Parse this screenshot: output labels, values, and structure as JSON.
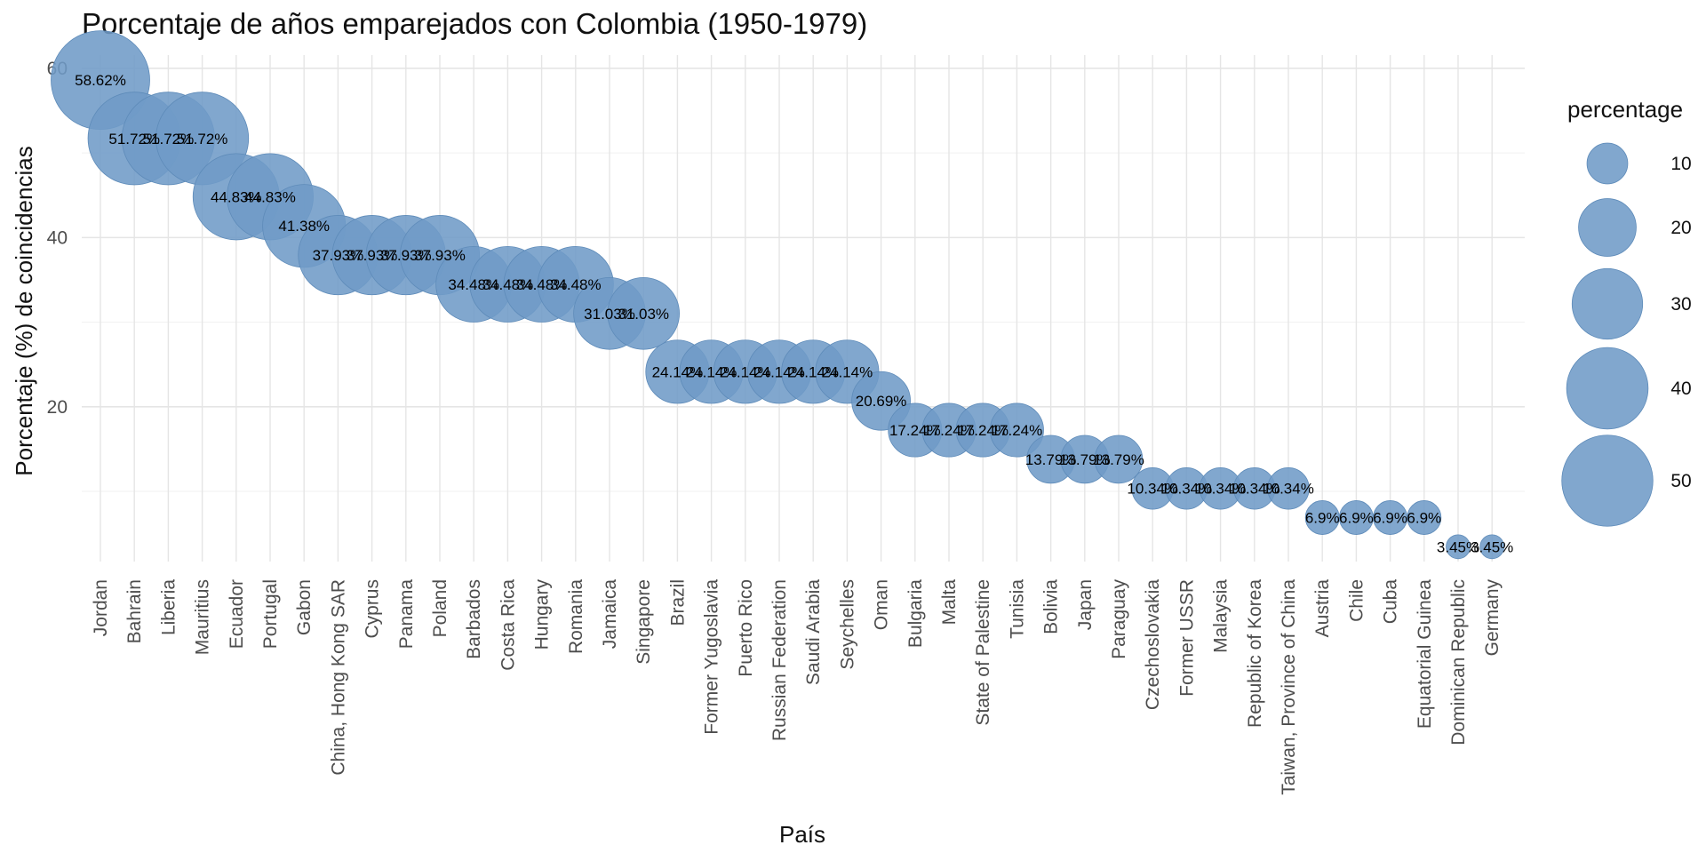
{
  "chart_data": {
    "type": "scatter",
    "title": "Porcentaje de años emparejados con Colombia (1950-1979)",
    "xlabel": "País",
    "ylabel": "Porcentaje (%) de coincidencias",
    "ylim": [
      1.7,
      60.3
    ],
    "yticks": [
      20,
      40,
      60
    ],
    "grid": true,
    "legend": {
      "title": "percentage",
      "position": "right",
      "sizes": [
        10,
        20,
        30,
        40,
        50
      ]
    },
    "color": "#6f9bc7",
    "categories": [
      "Jordan",
      "Bahrain",
      "Liberia",
      "Mauritius",
      "Ecuador",
      "Portugal",
      "Gabon",
      "China, Hong Kong SAR",
      "Cyprus",
      "Panama",
      "Poland",
      "Barbados",
      "Costa Rica",
      "Hungary",
      "Romania",
      "Jamaica",
      "Singapore",
      "Brazil",
      "Former Yugoslavia",
      "Puerto Rico",
      "Russian Federation",
      "Saudi Arabia",
      "Seychelles",
      "Oman",
      "Bulgaria",
      "Malta",
      "State of Palestine",
      "Tunisia",
      "Bolivia",
      "Japan",
      "Paraguay",
      "Czechoslovakia",
      "Former USSR",
      "Malaysia",
      "Republic of Korea",
      "Taiwan, Province of China",
      "Austria",
      "Chile",
      "Cuba",
      "Equatorial Guinea",
      "Dominican Republic",
      "Germany"
    ],
    "values": [
      58.62,
      51.72,
      51.72,
      51.72,
      44.83,
      44.83,
      41.38,
      37.93,
      37.93,
      37.93,
      37.93,
      34.48,
      34.48,
      34.48,
      34.48,
      31.03,
      31.03,
      24.14,
      24.14,
      24.14,
      24.14,
      24.14,
      24.14,
      20.69,
      17.24,
      17.24,
      17.24,
      17.24,
      13.79,
      13.79,
      13.79,
      10.34,
      10.34,
      10.34,
      10.34,
      10.34,
      6.9,
      6.9,
      6.9,
      6.9,
      3.45,
      3.45
    ],
    "labels": [
      "58.62%",
      "51.72%",
      "51.72%",
      "51.72%",
      "44.83%",
      "44.83%",
      "41.38%",
      "37.93%",
      "37.93%",
      "37.93%",
      "37.93%",
      "34.48%",
      "34.48%",
      "34.48%",
      "34.48%",
      "31.03%",
      "31.03%",
      "24.14%",
      "24.14%",
      "24.14%",
      "24.14%",
      "24.14%",
      "24.14%",
      "20.69%",
      "17.24%",
      "17.24%",
      "17.24%",
      "17.24%",
      "13.79%",
      "13.79%",
      "13.79%",
      "10.34%",
      "10.34%",
      "10.34%",
      "10.34%",
      "10.34%",
      "6.9%",
      "6.9%",
      "6.9%",
      "6.9%",
      "3.45%",
      "3.45%"
    ]
  }
}
